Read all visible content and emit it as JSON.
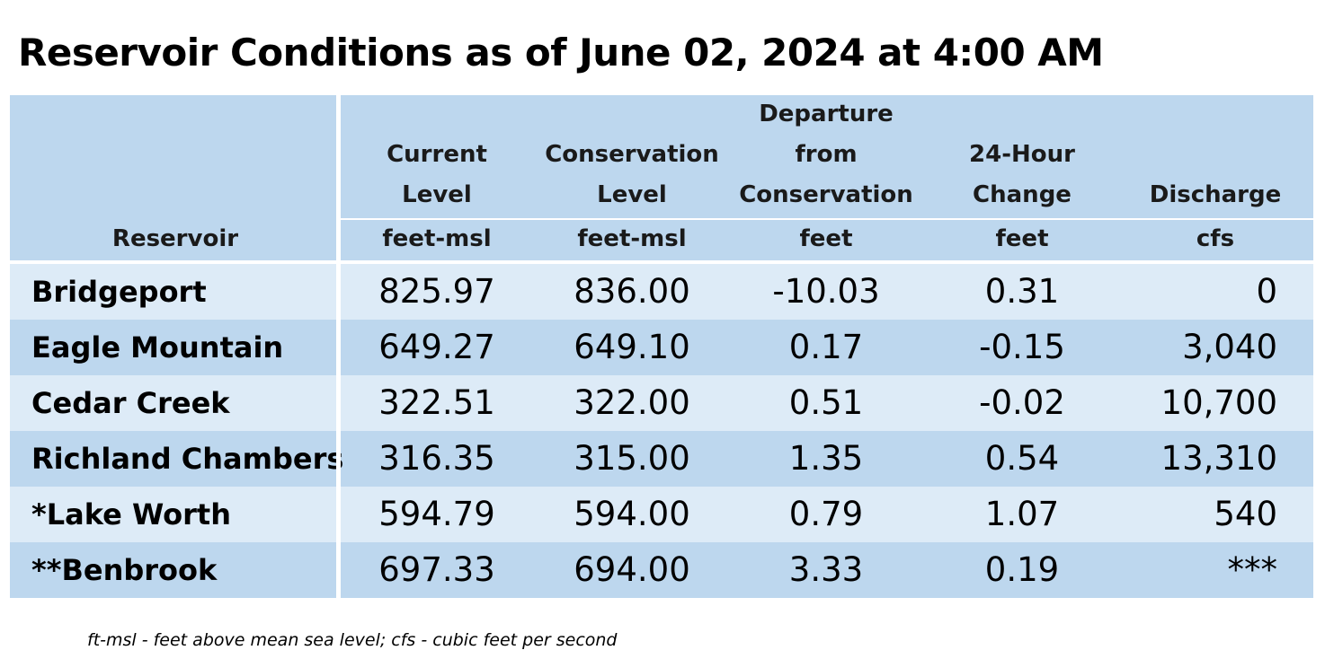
{
  "title": "Reservoir Conditions as of June 02, 2024 at 4:00 AM",
  "header": {
    "reservoir": "Reservoir",
    "current_level": [
      "Current",
      "Level",
      "feet-msl"
    ],
    "conservation_level": [
      "Conservation",
      "Level",
      "feet-msl"
    ],
    "departure": [
      "Departure",
      "from",
      "Conservation",
      "feet"
    ],
    "change_24h": [
      "24-Hour",
      "Change",
      "feet"
    ],
    "discharge": [
      "Discharge",
      "cfs"
    ]
  },
  "rows": [
    {
      "name": "Bridgeport",
      "current": "825.97",
      "conservation": "836.00",
      "departure": "-10.03",
      "change": "0.31",
      "discharge": "0"
    },
    {
      "name": "Eagle Mountain",
      "current": "649.27",
      "conservation": "649.10",
      "departure": "0.17",
      "change": "-0.15",
      "discharge": "3,040"
    },
    {
      "name": "Cedar Creek",
      "current": "322.51",
      "conservation": "322.00",
      "departure": "0.51",
      "change": "-0.02",
      "discharge": "10,700"
    },
    {
      "name": "Richland Chambers",
      "current": "316.35",
      "conservation": "315.00",
      "departure": "1.35",
      "change": "0.54",
      "discharge": "13,310"
    },
    {
      "name": "*Lake Worth",
      "current": "594.79",
      "conservation": "594.00",
      "departure": "0.79",
      "change": "1.07",
      "discharge": "540"
    },
    {
      "name": "**Benbrook",
      "current": "697.33",
      "conservation": "694.00",
      "departure": "3.33",
      "change": "0.19",
      "discharge": "***"
    }
  ],
  "footnote": "ft-msl - feet above mean sea level; cfs - cubic feet per second",
  "colors": {
    "header_bg": "#bdd7ee",
    "row_light": "#ddebf7",
    "row_dark": "#bdd7ee"
  }
}
